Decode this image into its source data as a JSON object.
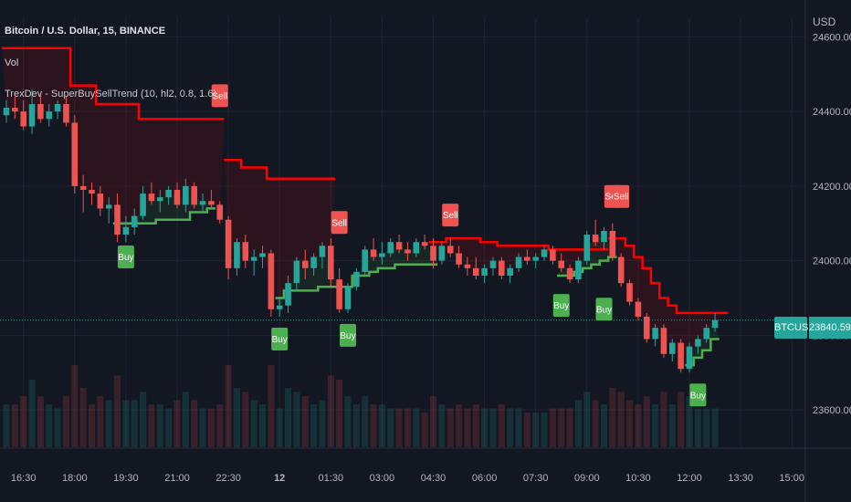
{
  "header": {
    "symbol_line": "Bitcoin / U.S. Dollar, 15, BINANCE",
    "indicator_vol": "Vol",
    "indicator_supertrend": "TrexDev - SuperBuySellTrend (10, hl2, 0.8, 1.6)",
    "currency": "USD"
  },
  "price_tag": {
    "symbol": "BTCUSD",
    "price": "23840.59",
    "color": "#26a69a"
  },
  "colors": {
    "background": "#131722",
    "up": "#26a69a",
    "down": "#ef5350",
    "stop_up": "#4caf50",
    "stop_down": "#ff0000",
    "grid": "#1f2433"
  },
  "chart_data": {
    "type": "candlestick",
    "title": "Bitcoin / U.S. Dollar, 15, BINANCE",
    "ylim": [
      23500,
      24650
    ],
    "y_ticks": [
      {
        "value": 23600,
        "label": "23600.00"
      },
      {
        "value": 23800,
        "label": "23800.00"
      },
      {
        "value": 24000,
        "label": "24000.00"
      },
      {
        "value": 24200,
        "label": "24200.00"
      },
      {
        "value": 24400,
        "label": "24400.00"
      },
      {
        "value": 24600,
        "label": "24600.00"
      }
    ],
    "x_ticks": [
      {
        "index": 2,
        "label": "16:30"
      },
      {
        "index": 8,
        "label": "18:00"
      },
      {
        "index": 14,
        "label": "19:30"
      },
      {
        "index": 20,
        "label": "21:00"
      },
      {
        "index": 26,
        "label": "22:30"
      },
      {
        "index": 32,
        "label": "12"
      },
      {
        "index": 38,
        "label": "01:30"
      },
      {
        "index": 44,
        "label": "03:00"
      },
      {
        "index": 50,
        "label": "04:30"
      },
      {
        "index": 56,
        "label": "06:00"
      },
      {
        "index": 62,
        "label": "07:30"
      },
      {
        "index": 68,
        "label": "09:00"
      },
      {
        "index": 74,
        "label": "10:30"
      },
      {
        "index": 80,
        "label": "12:00"
      },
      {
        "index": 86,
        "label": "13:30"
      },
      {
        "index": 92,
        "label": "15:00"
      }
    ],
    "candles": [
      [
        24390,
        24430,
        24370,
        24410
      ],
      [
        24410,
        24440,
        24380,
        24400
      ],
      [
        24400,
        24430,
        24350,
        24360
      ],
      [
        24360,
        24460,
        24340,
        24420
      ],
      [
        24420,
        24450,
        24370,
        24380
      ],
      [
        24380,
        24420,
        24360,
        24400
      ],
      [
        24400,
        24430,
        24380,
        24420
      ],
      [
        24420,
        24440,
        24360,
        24370
      ],
      [
        24370,
        24390,
        24180,
        24200
      ],
      [
        24200,
        24230,
        24130,
        24190
      ],
      [
        24190,
        24210,
        24150,
        24180
      ],
      [
        24180,
        24200,
        24120,
        24140
      ],
      [
        24140,
        24170,
        24100,
        24150
      ],
      [
        24150,
        24180,
        24050,
        24070
      ],
      [
        24070,
        24120,
        24050,
        24090
      ],
      [
        24090,
        24140,
        24070,
        24120
      ],
      [
        24120,
        24200,
        24110,
        24180
      ],
      [
        24180,
        24210,
        24150,
        24160
      ],
      [
        24160,
        24190,
        24130,
        24170
      ],
      [
        24170,
        24200,
        24150,
        24190
      ],
      [
        24190,
        24210,
        24140,
        24150
      ],
      [
        24150,
        24220,
        24130,
        24200
      ],
      [
        24200,
        24210,
        24140,
        24150
      ],
      [
        24150,
        24180,
        24130,
        24160
      ],
      [
        24160,
        24190,
        24140,
        24150
      ],
      [
        24150,
        24160,
        24100,
        24110
      ],
      [
        24110,
        24120,
        23950,
        23980
      ],
      [
        23980,
        24060,
        23960,
        24050
      ],
      [
        24050,
        24070,
        23980,
        24000
      ],
      [
        24000,
        24030,
        23960,
        24010
      ],
      [
        24010,
        24040,
        23980,
        24020
      ],
      [
        24020,
        24030,
        23850,
        23870
      ],
      [
        23870,
        23900,
        23850,
        23880
      ],
      [
        23880,
        23960,
        23860,
        23940
      ],
      [
        23940,
        24010,
        23920,
        24000
      ],
      [
        24000,
        24030,
        23950,
        23980
      ],
      [
        23980,
        24020,
        23960,
        24010
      ],
      [
        24010,
        24050,
        23980,
        24040
      ],
      [
        24040,
        24060,
        23930,
        23950
      ],
      [
        23950,
        23980,
        23860,
        23870
      ],
      [
        23870,
        23940,
        23860,
        23930
      ],
      [
        23930,
        23980,
        23920,
        23970
      ],
      [
        23970,
        24040,
        23960,
        24030
      ],
      [
        24030,
        24060,
        24000,
        24010
      ],
      [
        24010,
        24050,
        23990,
        24020
      ],
      [
        24020,
        24060,
        24010,
        24050
      ],
      [
        24050,
        24070,
        24020,
        24030
      ],
      [
        24030,
        24050,
        24000,
        24020
      ],
      [
        24020,
        24060,
        24010,
        24050
      ],
      [
        24050,
        24070,
        24030,
        24040
      ],
      [
        24040,
        24060,
        23980,
        24000
      ],
      [
        24000,
        24050,
        23990,
        24040
      ],
      [
        24040,
        24060,
        24010,
        24020
      ],
      [
        24020,
        24040,
        23980,
        23990
      ],
      [
        23990,
        24010,
        23960,
        23980
      ],
      [
        23980,
        24010,
        23950,
        23960
      ],
      [
        23960,
        23990,
        23940,
        23980
      ],
      [
        23980,
        24010,
        23960,
        24000
      ],
      [
        24000,
        24010,
        23950,
        23960
      ],
      [
        23960,
        23990,
        23940,
        23980
      ],
      [
        23980,
        24020,
        23970,
        24010
      ],
      [
        24010,
        24030,
        23990,
        24000
      ],
      [
        24000,
        24020,
        23980,
        24010
      ],
      [
        24010,
        24040,
        24000,
        24030
      ],
      [
        24030,
        24040,
        23990,
        24000
      ],
      [
        24000,
        24020,
        23970,
        23980
      ],
      [
        23980,
        23990,
        23940,
        23950
      ],
      [
        23950,
        24010,
        23940,
        24000
      ],
      [
        24000,
        24080,
        23990,
        24070
      ],
      [
        24070,
        24110,
        24040,
        24050
      ],
      [
        24050,
        24090,
        24030,
        24080
      ],
      [
        24080,
        24100,
        24000,
        24010
      ],
      [
        24010,
        24020,
        23930,
        23940
      ],
      [
        23940,
        23950,
        23880,
        23890
      ],
      [
        23890,
        23900,
        23840,
        23850
      ],
      [
        23850,
        23860,
        23780,
        23790
      ],
      [
        23790,
        23830,
        23770,
        23820
      ],
      [
        23820,
        23830,
        23740,
        23750
      ],
      [
        23750,
        23790,
        23730,
        23780
      ],
      [
        23780,
        23790,
        23700,
        23710
      ],
      [
        23710,
        23780,
        23700,
        23770
      ],
      [
        23770,
        23800,
        23750,
        23790
      ],
      [
        23790,
        23830,
        23780,
        23820
      ],
      [
        23820,
        23860,
        23810,
        23841
      ]
    ],
    "stop_line": [
      {
        "side": "down",
        "values": [
          24570,
          24570,
          24570,
          24570,
          24570,
          24570,
          24570,
          24570,
          24470,
          24470,
          24470,
          24420,
          24420,
          24420,
          24420,
          24420,
          24380,
          24380,
          24380,
          24380,
          24380,
          24380,
          24380,
          24380,
          24380,
          24380
        ]
      },
      {
        "side": "up",
        "start": 13,
        "values": [
          24100,
          24100,
          24100,
          24100,
          24100,
          24110,
          24110,
          24110,
          24110,
          24130,
          24130,
          24140
        ]
      },
      {
        "side": "down",
        "start": 26,
        "values": [
          24270,
          24270,
          24250,
          24250,
          24250,
          24220,
          24220,
          24220,
          24220,
          24220,
          24220,
          24220,
          24220
        ]
      },
      {
        "side": "up",
        "start": 32,
        "values": [
          23900,
          23920,
          23920,
          23920,
          23920,
          23930,
          23930,
          23930
        ]
      },
      {
        "side": "up",
        "start": 40,
        "values": [
          23930,
          23960,
          23960,
          23970,
          23980,
          23980,
          23990,
          23990,
          23990,
          23990,
          23990
        ]
      },
      {
        "side": "down",
        "start": 50,
        "values": [
          24050,
          24050,
          24060,
          24060,
          24060,
          24060,
          24050,
          24050,
          24040,
          24040,
          24040,
          24040,
          24040,
          24040,
          24030,
          24030,
          24030,
          24030,
          24030,
          24030,
          24030
        ]
      },
      {
        "side": "up",
        "start": 65,
        "values": [
          23960,
          23960,
          23970,
          23980,
          23990,
          24000,
          24010
        ]
      },
      {
        "side": "down",
        "start": 71,
        "values": [
          24060,
          24060,
          24040,
          24010,
          23980,
          23940,
          23900,
          23880,
          23860,
          23860,
          23860,
          23860,
          23860,
          23860
        ]
      },
      {
        "side": "up",
        "start": 80,
        "values": [
          23720,
          23740,
          23760,
          23790
        ]
      }
    ],
    "signals": [
      {
        "index": 14,
        "type": "Buy",
        "value": 24070
      },
      {
        "index": 25,
        "type": "Sell",
        "value": 24380
      },
      {
        "index": 32,
        "type": "Buy",
        "value": 23850
      },
      {
        "index": 40,
        "type": "Buy",
        "value": 23860
      },
      {
        "index": 39,
        "type": "Sell",
        "value": 24040
      },
      {
        "index": 52,
        "type": "Sell",
        "value": 24060
      },
      {
        "index": 65,
        "type": "Buy",
        "value": 23940
      },
      {
        "index": 70,
        "type": "Buy",
        "value": 23930
      },
      {
        "index": 71,
        "type": "Sell",
        "value": 24110
      },
      {
        "index": 72,
        "type": "Sell",
        "value": 24110
      },
      {
        "index": 81,
        "type": "Buy",
        "value": 23700
      }
    ],
    "labels": {
      "buy": "Buy",
      "sell": "Sell"
    },
    "last_price": 23840.59
  }
}
